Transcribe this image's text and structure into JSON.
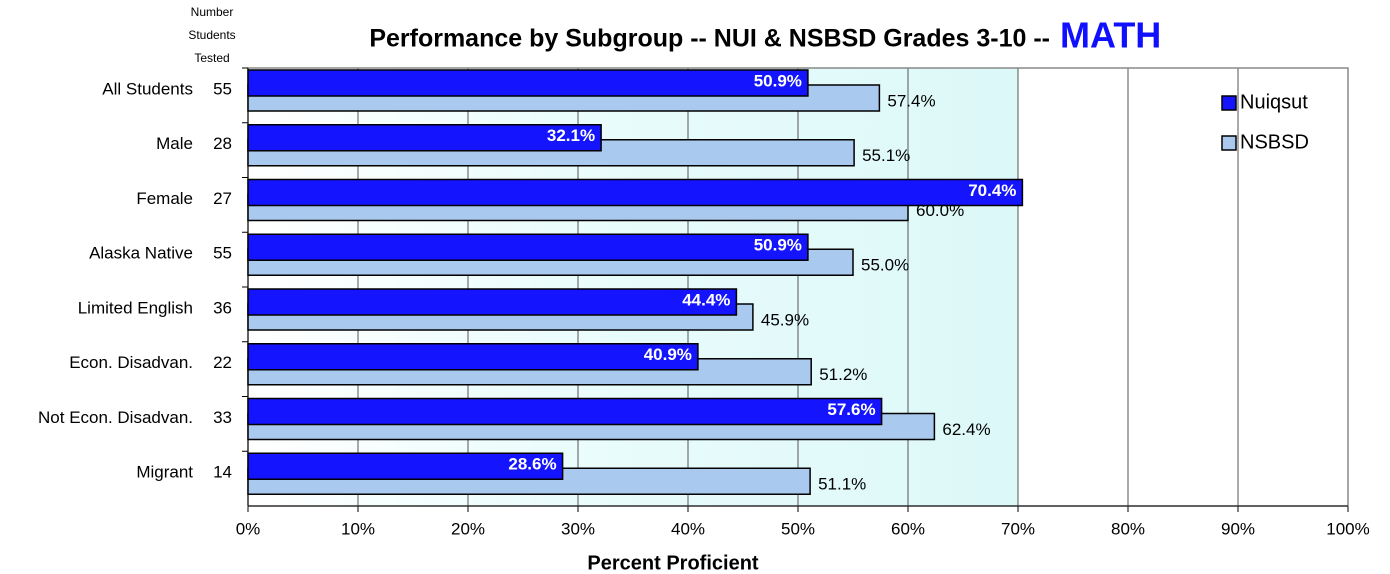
{
  "chart_data": {
    "type": "bar",
    "orientation": "horizontal",
    "title": "Performance by Subgroup -- NUI & NSBSD Grades 3-10 --",
    "subject": "MATH",
    "x_label": "Percent Proficient",
    "n_tested_label": [
      "Number",
      "Students",
      "Tested"
    ],
    "categories": [
      "All Students",
      "Male",
      "Female",
      "Alaska Native",
      "Limited English",
      "Econ. Disadvan.",
      "Not Econ. Disadvan.",
      "Migrant"
    ],
    "n_tested": [
      55,
      28,
      27,
      55,
      36,
      22,
      33,
      14
    ],
    "series": [
      {
        "name": "Nuiqsut",
        "color": "#1414ff",
        "values": [
          50.9,
          32.1,
          70.4,
          50.9,
          44.4,
          40.9,
          57.6,
          28.6
        ],
        "value_labels": [
          "50.9%",
          "32.1%",
          "70.4%",
          "50.9%",
          "44.4%",
          "40.9%",
          "57.6%",
          "28.6%"
        ]
      },
      {
        "name": "NSBSD",
        "color": "#a9c9ef",
        "values": [
          57.4,
          55.1,
          60.0,
          55.0,
          45.9,
          51.2,
          62.4,
          51.1
        ],
        "value_labels": [
          "57.4%",
          "55.1%",
          "60.0%",
          "55.0%",
          "45.9%",
          "51.2%",
          "62.4%",
          "51.1%"
        ]
      }
    ],
    "xlim": [
      0,
      100
    ],
    "xticks": [
      {
        "value": 0,
        "label": "0%"
      },
      {
        "value": 10,
        "label": "10%"
      },
      {
        "value": 20,
        "label": "20%"
      },
      {
        "value": 30,
        "label": "30%"
      },
      {
        "value": 40,
        "label": "40%"
      },
      {
        "value": 50,
        "label": "50%"
      },
      {
        "value": 60,
        "label": "60%"
      },
      {
        "value": 70,
        "label": "70%"
      },
      {
        "value": 80,
        "label": "80%"
      },
      {
        "value": 90,
        "label": "90%"
      },
      {
        "value": 100,
        "label": "100%"
      }
    ],
    "grid": true,
    "legend": "top-right"
  }
}
